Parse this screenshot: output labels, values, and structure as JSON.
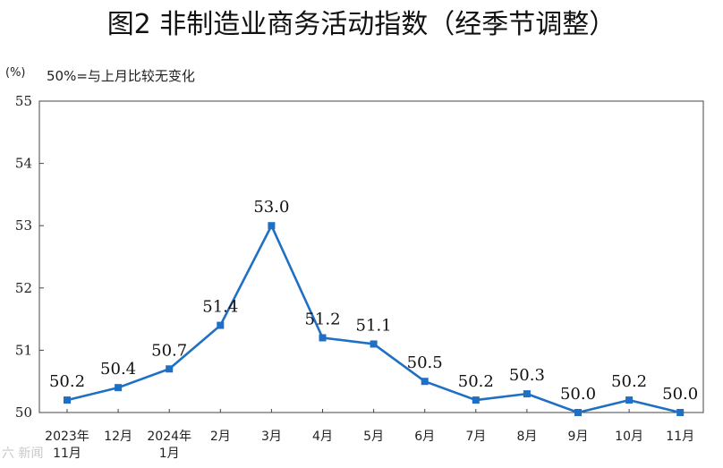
{
  "title": "图2  非制造业商务活动指数（经季节调整）",
  "unit_label": "(%)",
  "reference_note": "50%=与上月比较无变化",
  "watermark": "六 新闻",
  "chart_data": {
    "type": "line",
    "title": "图2  非制造业商务活动指数（经季节调整）",
    "ylabel": "(%)",
    "xlabel": "",
    "ylim": [
      50,
      55
    ],
    "yticks": [
      "50",
      "51",
      "52",
      "53",
      "54",
      "55"
    ],
    "categories": [
      [
        "2023年",
        "11月"
      ],
      [
        "12月"
      ],
      [
        "2024年",
        "1月"
      ],
      [
        "2月"
      ],
      [
        "3月"
      ],
      [
        "4月"
      ],
      [
        "5月"
      ],
      [
        "6月"
      ],
      [
        "7月"
      ],
      [
        "8月"
      ],
      [
        "9月"
      ],
      [
        "10月"
      ],
      [
        "11月"
      ]
    ],
    "values": [
      50.2,
      50.4,
      50.7,
      51.4,
      53.0,
      51.2,
      51.1,
      50.5,
      50.2,
      50.3,
      50.0,
      50.2,
      50.0
    ],
    "value_labels": [
      "50.2",
      "50.4",
      "50.7",
      "51.4",
      "53.0",
      "51.2",
      "51.1",
      "50.5",
      "50.2",
      "50.3",
      "50.0",
      "50.2",
      "50.0"
    ],
    "line_color": "#1f6fc4",
    "marker": "square",
    "grid": false,
    "legend": "none"
  }
}
